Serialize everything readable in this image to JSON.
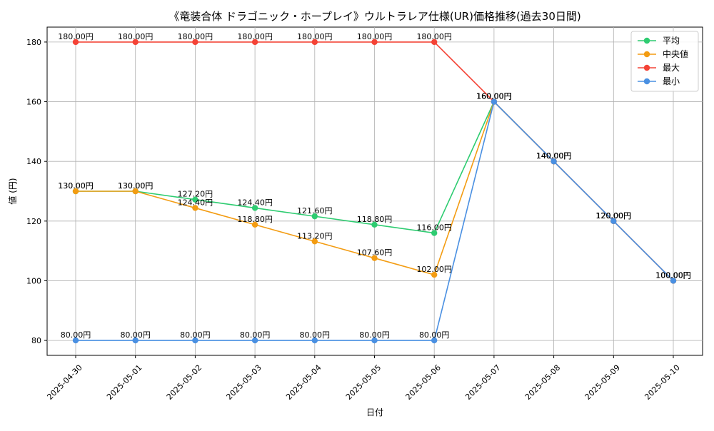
{
  "chart_data": {
    "type": "line",
    "title": "《竜装合体 ドラゴニック・ホープレイ》ウルトラレア仕様(UR)価格推移(過去30日間)",
    "xlabel": "日付",
    "ylabel": "値 (円)",
    "categories": [
      "2025-04-30",
      "2025-05-01",
      "2025-05-02",
      "2025-05-03",
      "2025-05-04",
      "2025-05-05",
      "2025-05-06",
      "2025-05-07",
      "2025-05-08",
      "2025-05-09",
      "2025-05-10"
    ],
    "ylim": [
      75,
      185
    ],
    "yticks": [
      80,
      100,
      120,
      140,
      160,
      180
    ],
    "grid": true,
    "legend_position": "top-right",
    "unit_suffix": "円",
    "series": [
      {
        "name": "平均",
        "color": "#2ecc71",
        "values": [
          130,
          130,
          127.2,
          124.4,
          121.6,
          118.8,
          116,
          160,
          140,
          120,
          100
        ]
      },
      {
        "name": "中央値",
        "color": "#f39c12",
        "values": [
          130,
          130,
          124.4,
          118.8,
          113.2,
          107.6,
          102,
          160,
          140,
          120,
          100
        ]
      },
      {
        "name": "最大",
        "color": "#f44336",
        "values": [
          180,
          180,
          180,
          180,
          180,
          180,
          180,
          160,
          140,
          120,
          100
        ]
      },
      {
        "name": "最小",
        "color": "#4a90e2",
        "values": [
          80,
          80,
          80,
          80,
          80,
          80,
          80,
          160,
          140,
          120,
          100
        ]
      }
    ]
  }
}
